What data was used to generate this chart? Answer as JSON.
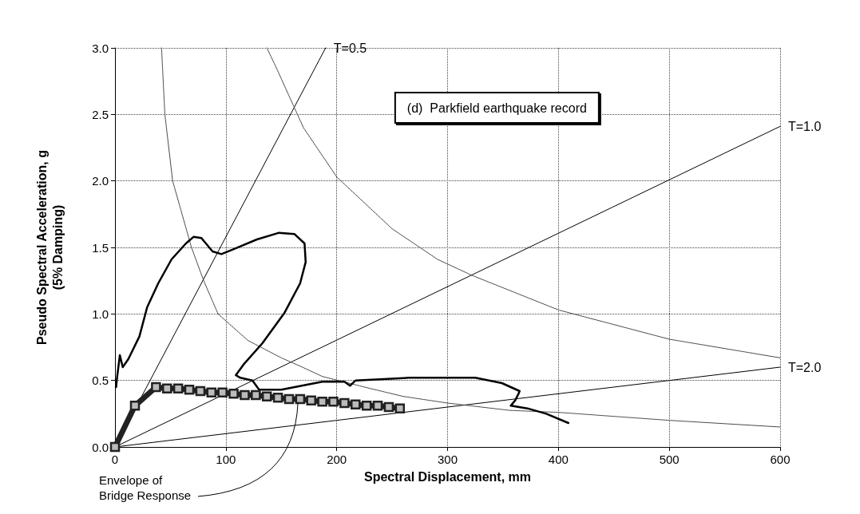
{
  "chart_data": {
    "type": "line",
    "xlabel": "Spectral Displacement, mm",
    "ylabel": "Pseudo Spectral Acceleration, g\n(5% Damping)",
    "xlim": [
      0,
      600
    ],
    "xticks": [
      0,
      100,
      200,
      300,
      400,
      500,
      600
    ],
    "ylim": [
      0,
      3.0
    ],
    "yticks": [
      {
        "value": 0,
        "label": "0.0"
      },
      {
        "value": 0.5,
        "label": "0.5"
      },
      {
        "value": 1,
        "label": "1.0"
      },
      {
        "value": 1.5,
        "label": "1.5"
      },
      {
        "value": 2,
        "label": "2.0"
      },
      {
        "value": 2.5,
        "label": "2.5"
      },
      {
        "value": 3,
        "label": "3.0"
      }
    ],
    "grid": true,
    "legend": false,
    "annotations": [
      "(d)  Parkfield earthquake record",
      {
        "text": "Envelope of\nBridge Response",
        "x": 165,
        "y": 0.33
      }
    ],
    "series": [
      {
        "name": "T=0.5",
        "color": "#000000",
        "line_style": "solid",
        "marker": "none",
        "x": [
          0,
          190
        ],
        "values": [
          0,
          3.0
        ]
      },
      {
        "name": "T=1.0",
        "color": "#000000",
        "line_style": "solid",
        "marker": "none",
        "x": [
          0,
          600
        ],
        "values": [
          0,
          2.41
        ]
      },
      {
        "name": "T=2.0",
        "color": "#000000",
        "line_style": "solid",
        "marker": "none",
        "x": [
          0,
          600
        ],
        "values": [
          0,
          0.6
        ]
      },
      {
        "color": "#333333",
        "line_style": "dotted",
        "marker": "none",
        "x": [
          42,
          45,
          52,
          69,
          80,
          93,
          120,
          150,
          169,
          187,
          230,
          260,
          300,
          356,
          400,
          500,
          600
        ],
        "values": [
          3.0,
          2.5,
          2.0,
          1.5,
          1.25,
          1.0,
          0.8,
          0.67,
          0.6,
          0.53,
          0.44,
          0.38,
          0.33,
          0.275,
          0.26,
          0.2,
          0.15
        ]
      },
      {
        "color": "#333333",
        "line_style": "dotted",
        "marker": "none",
        "x": [
          137,
          145,
          170,
          200,
          250,
          291,
          322,
          400,
          500,
          600
        ],
        "values": [
          3.0,
          2.86,
          2.4,
          2.03,
          1.64,
          1.41,
          1.29,
          1.03,
          0.81,
          0.67
        ]
      },
      {
        "color": "#000000",
        "line_style": "solid",
        "marker": "none",
        "x": [
          1,
          2,
          4.4,
          7,
          12,
          22,
          29,
          39,
          51,
          64,
          71,
          78,
          88,
          96,
          108,
          128,
          148,
          162,
          171,
          172,
          167,
          153,
          133,
          116,
          109,
          113,
          124,
          130,
          150,
          187,
          207,
          212,
          217,
          265,
          301,
          325,
          349,
          365,
          364,
          361,
          357,
          372,
          389,
          409
        ],
        "values": [
          0.45,
          0.53,
          0.69,
          0.6,
          0.66,
          0.83,
          1.05,
          1.23,
          1.41,
          1.53,
          1.58,
          1.57,
          1.47,
          1.45,
          1.49,
          1.56,
          1.61,
          1.6,
          1.53,
          1.39,
          1.23,
          1.01,
          0.78,
          0.62,
          0.54,
          0.52,
          0.5,
          0.43,
          0.43,
          0.49,
          0.49,
          0.46,
          0.5,
          0.52,
          0.52,
          0.52,
          0.48,
          0.42,
          0.4,
          0.35,
          0.31,
          0.29,
          0.25,
          0.18
        ]
      },
      {
        "color": "#222222",
        "line_style": "solid",
        "marker": "square",
        "x": [
          0,
          18,
          37,
          47,
          57,
          67,
          77,
          87,
          97,
          107,
          117,
          127,
          137,
          147,
          157,
          167,
          177,
          187,
          197,
          207,
          217,
          227,
          237,
          247,
          257
        ],
        "values": [
          0,
          0.31,
          0.45,
          0.44,
          0.44,
          0.43,
          0.42,
          0.41,
          0.41,
          0.4,
          0.39,
          0.39,
          0.38,
          0.37,
          0.36,
          0.36,
          0.35,
          0.34,
          0.34,
          0.33,
          0.32,
          0.31,
          0.31,
          0.3,
          0.29
        ]
      }
    ]
  }
}
